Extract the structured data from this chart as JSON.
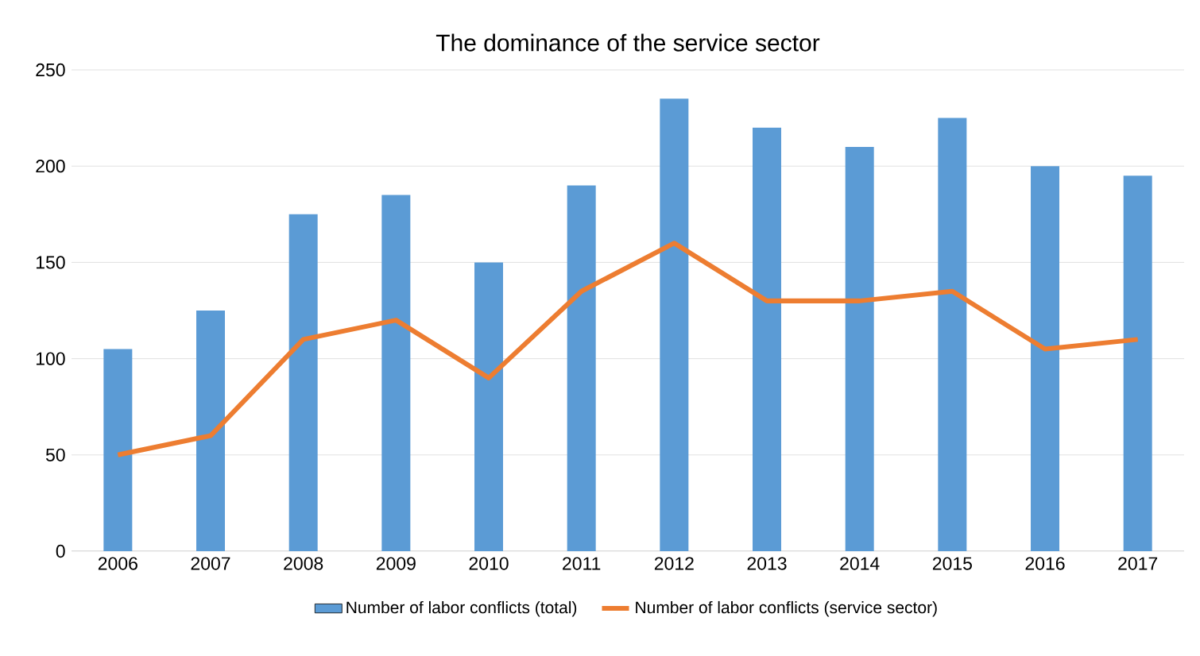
{
  "chart_data": {
    "type": "bar",
    "title": "The dominance of the service sector",
    "categories": [
      "2006",
      "2007",
      "2008",
      "2009",
      "2010",
      "2011",
      "2012",
      "2013",
      "2014",
      "2015",
      "2016",
      "2017"
    ],
    "series": [
      {
        "name": "Number of labor conflicts (total)",
        "color": "#5b9bd5",
        "values": [
          105,
          125,
          175,
          185,
          150,
          190,
          235,
          220,
          210,
          225,
          200,
          195
        ]
      },
      {
        "name": "Number of labor conflicts (service sector)",
        "type": "line",
        "color": "#ed7d31",
        "values": [
          50,
          60,
          110,
          120,
          90,
          135,
          160,
          130,
          130,
          135,
          105,
          110
        ]
      }
    ],
    "ylim": [
      0,
      250
    ],
    "yticks": [
      0,
      50,
      100,
      150,
      200,
      250
    ],
    "grid": "y",
    "legend": "bottom"
  }
}
